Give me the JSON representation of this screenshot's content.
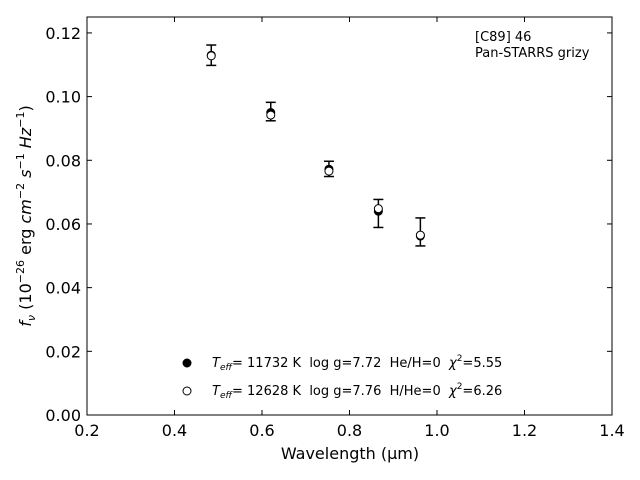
{
  "chart_data": {
    "type": "scatter",
    "title": "",
    "xlabel": "Wavelength",
    "xlabel_unit": "(μm)",
    "ylabel_symbol": "f",
    "ylabel_sub": "ν",
    "ylabel_unit_parts": [
      "(10",
      "−26",
      " erg ",
      "cm",
      "−2",
      " s",
      "−1",
      " Hz",
      "−1",
      ")"
    ],
    "xlim": [
      0.2,
      1.4
    ],
    "ylim": [
      0.0,
      0.125
    ],
    "x_ticks": [
      0.2,
      0.4,
      0.6,
      0.8,
      1.0,
      1.2,
      1.4
    ],
    "x_tick_labels": [
      "0.2",
      "0.4",
      "0.6",
      "0.8",
      "1.0",
      "1.2",
      "1.4"
    ],
    "y_ticks": [
      0.0,
      0.02,
      0.04,
      0.06,
      0.08,
      0.1,
      0.12
    ],
    "y_tick_labels": [
      "0.00",
      "0.02",
      "0.04",
      "0.06",
      "0.08",
      "0.10",
      "0.12"
    ],
    "grid": false,
    "annotation_lines": [
      "[C89] 46",
      "Pan-STARRS grizy"
    ],
    "annotation_position": "top-right",
    "legend_position": "bottom-center",
    "observed": {
      "x": [
        0.484,
        0.62,
        0.753,
        0.866,
        0.962
      ],
      "y": [
        0.113,
        0.0953,
        0.0773,
        0.0633,
        0.0575
      ],
      "yerr": [
        0.0032,
        0.0029,
        0.0024,
        0.0044,
        0.0044
      ]
    },
    "series": [
      {
        "marker": "filled",
        "color": "#000000",
        "x": [
          0.484,
          0.62,
          0.753,
          0.866,
          0.962
        ],
        "y": [
          0.113,
          0.095,
          0.0772,
          0.064,
          0.0562
        ],
        "legend": {
          "teff": "11732 K",
          "logg": "log g=7.72",
          "comp": "He/H=0",
          "chi2": "=5.55"
        }
      },
      {
        "marker": "open",
        "color": "#000000",
        "x": [
          0.484,
          0.62,
          0.753,
          0.866,
          0.962
        ],
        "y": [
          0.1128,
          0.0942,
          0.0766,
          0.0648,
          0.0565
        ],
        "legend": {
          "teff": "12628 K",
          "logg": "log g=7.76",
          "comp": "H/He=0",
          "chi2": "=6.26"
        }
      }
    ]
  }
}
